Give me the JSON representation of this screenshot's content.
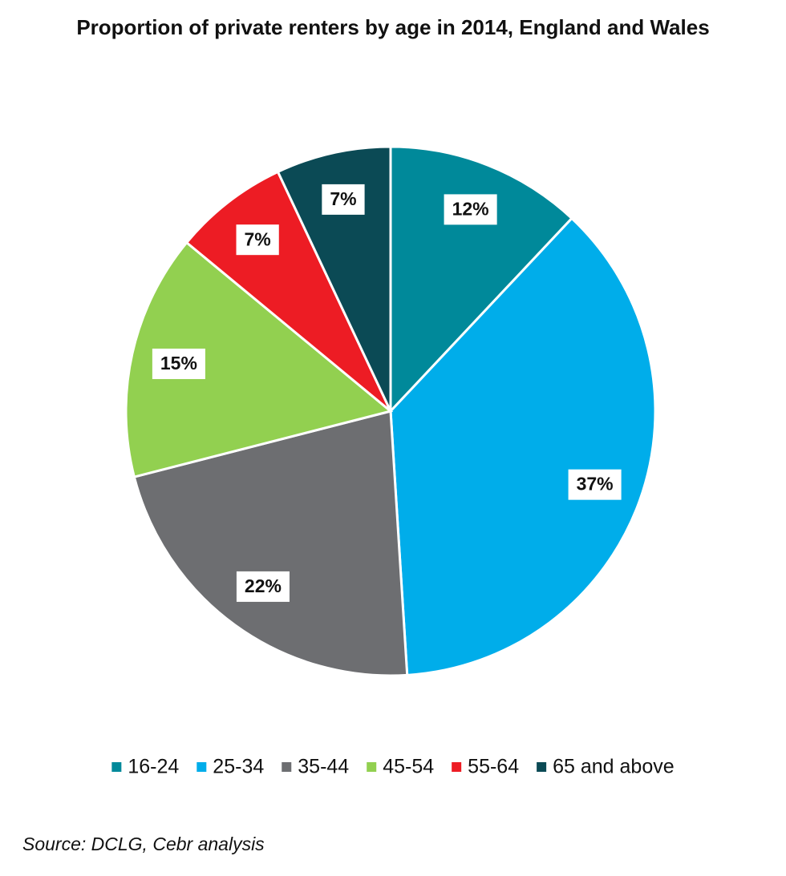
{
  "chart_data": {
    "type": "pie",
    "title": "Proportion of private renters by age in 2014, England and Wales",
    "categories": [
      "16-24",
      "25-34",
      "35-44",
      "45-54",
      "55-64",
      "65 and above"
    ],
    "values": [
      12,
      37,
      22,
      15,
      7,
      7
    ],
    "value_labels": [
      "12%",
      "37%",
      "22%",
      "15%",
      "7%",
      "7%"
    ],
    "colors": [
      "#00899a",
      "#00adea",
      "#6d6e71",
      "#92d050",
      "#ed1c24",
      "#0b4a55"
    ],
    "legend": "bottom",
    "source": "Source: DCLG, Cebr analysis"
  }
}
